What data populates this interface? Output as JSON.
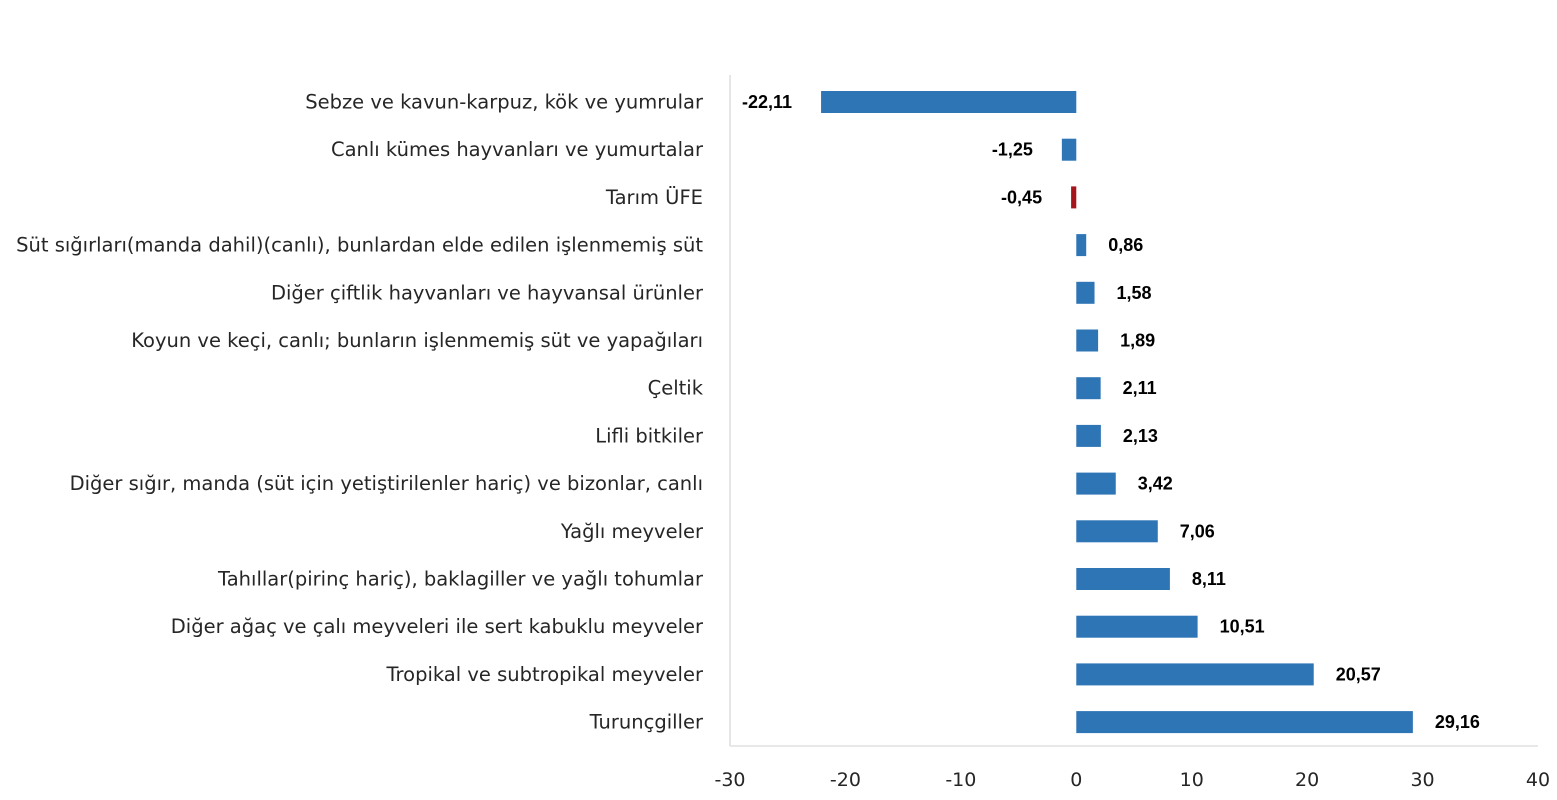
{
  "chart_data": {
    "type": "bar",
    "orientation": "horizontal",
    "categories": [
      "Sebze ve kavun-karpuz, kök ve yumrular",
      "Canlı kümes hayvanları ve yumurtalar",
      "Tarım ÜFE",
      "Süt sığırları(manda dahil)(canlı), bunlardan elde edilen işlenmemiş süt",
      "Diğer çiftlik hayvanları ve hayvansal ürünler",
      "Koyun ve keçi, canlı; bunların işlenmemiş süt ve yapağıları",
      "Çeltik",
      "Lifli bitkiler",
      "Diğer sığır, manda (süt için yetiştirilenler hariç) ve bizonlar, canlı",
      "Yağlı meyveler",
      "Tahıllar(pirinç hariç), baklagiller ve yağlı tohumlar",
      "Diğer ağaç ve çalı meyveleri ile sert kabuklu meyveler",
      "Tropikal ve subtropikal meyveler",
      "Turunçgiller"
    ],
    "values": [
      -22.11,
      -1.25,
      -0.45,
      0.86,
      1.58,
      1.89,
      2.11,
      2.13,
      3.42,
      7.06,
      8.11,
      10.51,
      20.57,
      29.16
    ],
    "value_labels": [
      "-22,11",
      "-1,25",
      "-0,45",
      "0,86",
      "1,58",
      "1,89",
      "2,11",
      "2,13",
      "3,42",
      "7,06",
      "8,11",
      "10,51",
      "20,57",
      "29,16"
    ],
    "bar_colors": [
      "#2e75b6",
      "#2e75b6",
      "#a6151b",
      "#2e75b6",
      "#2e75b6",
      "#2e75b6",
      "#2e75b6",
      "#2e75b6",
      "#2e75b6",
      "#2e75b6",
      "#2e75b6",
      "#2e75b6",
      "#2e75b6",
      "#2e75b6"
    ],
    "xlim": [
      -30,
      40
    ],
    "x_ticks": [
      -30,
      -20,
      -10,
      0,
      10,
      20,
      30,
      40
    ],
    "x_tick_labels": [
      "-30",
      "-20",
      "-10",
      "0",
      "10",
      "20",
      "30",
      "40"
    ],
    "grid": false,
    "legend": "none",
    "title": "",
    "xlabel": "",
    "ylabel": ""
  },
  "colors": {
    "default_bar": "#2e75b6",
    "highlight_bar": "#a6151b",
    "axis": "#d9d9d9",
    "label_text": "#262626",
    "value_text": "#000000"
  }
}
